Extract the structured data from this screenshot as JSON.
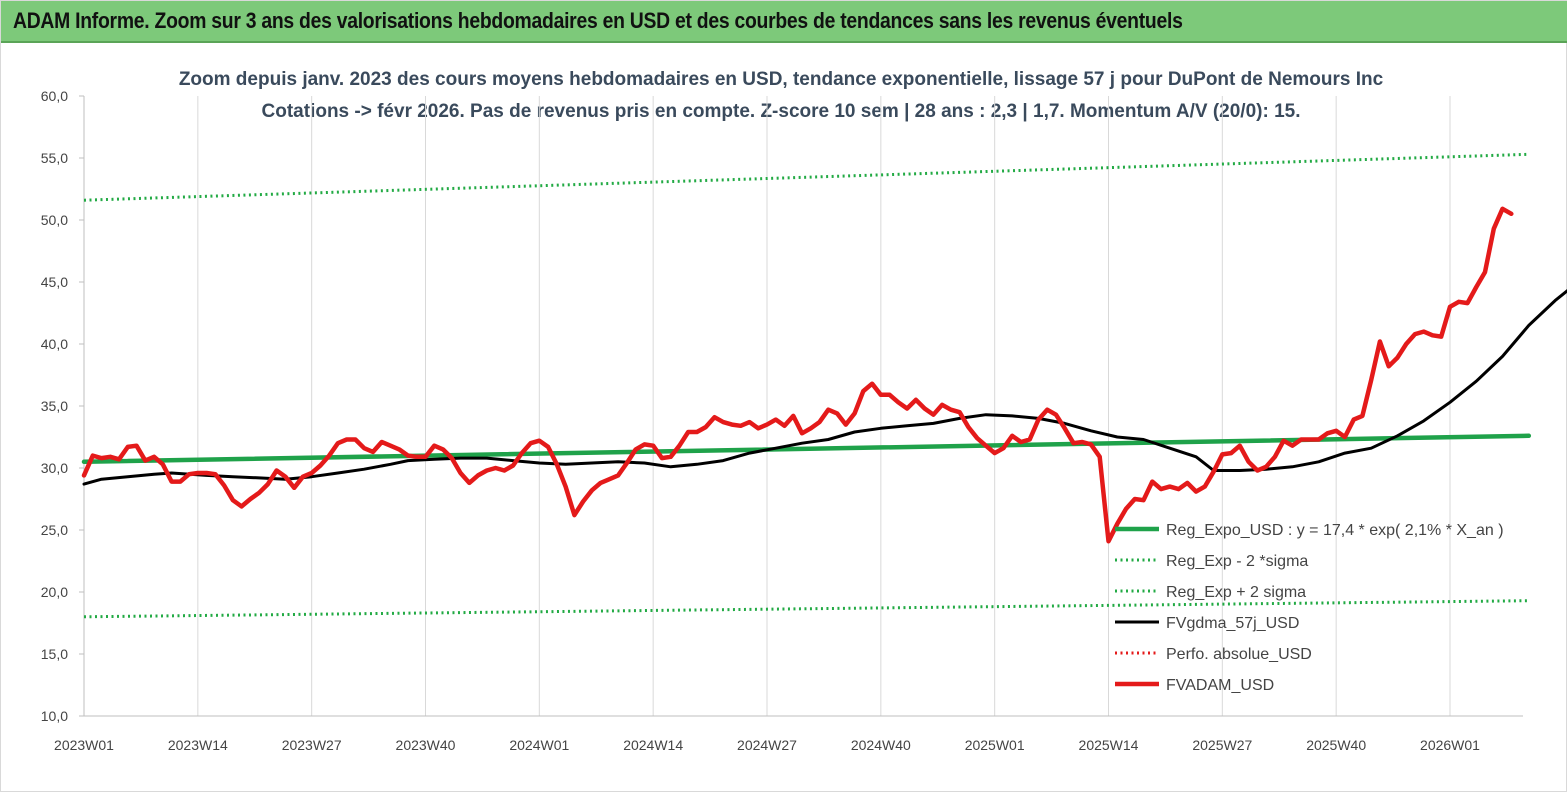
{
  "banner": {
    "title": "ADAM Informe. Zoom sur 3 ans des valorisations hebdomadaires en USD et des courbes de tendances sans les revenus éventuels",
    "color": "#7dc97a"
  },
  "chart_data": {
    "type": "line",
    "title": "Zoom depuis janv. 2023 des cours moyens hebdomadaires en USD, tendance exponentielle, lissage 57 j pour DuPont de Nemours Inc",
    "subtitle": "Cotations -> févr 2026.  Pas de revenus pris en compte. Z-score 10 sem  | 28 ans : 2,3  | 1,7. Momentum A/V (20/0): 15.",
    "xlabel": "",
    "ylabel": "",
    "ylim": [
      10,
      60
    ],
    "yticks": [
      "60,0",
      "55,0",
      "50,0",
      "45,0",
      "40,0",
      "35,0",
      "30,0",
      "25,0",
      "20,0",
      "15,0",
      "10,0"
    ],
    "xticks": [
      "2023W01",
      "2023W14",
      "2023W27",
      "2023W40",
      "2024W01",
      "2024W14",
      "2024W27",
      "2024W40",
      "2025W01",
      "2025W14",
      "2025W27",
      "2025W40",
      "2026W01"
    ],
    "xrange_weeks": [
      0,
      165
    ],
    "grid": "vertical",
    "legend_position": "bottom-right",
    "series": [
      {
        "name": "Reg_Expo_USD : y = 17,4 * exp( 2,1% *  X_an )",
        "color": "#1fa24a",
        "style": "solid-thick",
        "points": [
          [
            0,
            30.5
          ],
          [
            165,
            32.6
          ]
        ]
      },
      {
        "name": "Reg_Exp - 2 *sigma",
        "color": "#22aa44",
        "style": "dotted",
        "points": [
          [
            0,
            18.0
          ],
          [
            165,
            19.3
          ]
        ]
      },
      {
        "name": "Reg_Exp + 2 sigma",
        "color": "#22aa44",
        "style": "dotted",
        "points": [
          [
            0,
            51.6
          ],
          [
            165,
            55.3
          ]
        ]
      },
      {
        "name": "FVgdma_57j_USD",
        "color": "#000000",
        "style": "solid",
        "points": [
          [
            0,
            28.7
          ],
          [
            2,
            29.1
          ],
          [
            5,
            29.3
          ],
          [
            8,
            29.5
          ],
          [
            10,
            29.6
          ],
          [
            14,
            29.4
          ],
          [
            17,
            29.3
          ],
          [
            20,
            29.2
          ],
          [
            23,
            29.1
          ],
          [
            26,
            29.3
          ],
          [
            29,
            29.6
          ],
          [
            32,
            29.9
          ],
          [
            35,
            30.3
          ],
          [
            37,
            30.6
          ],
          [
            40,
            30.7
          ],
          [
            43,
            30.8
          ],
          [
            46,
            30.8
          ],
          [
            49,
            30.6
          ],
          [
            52,
            30.4
          ],
          [
            55,
            30.3
          ],
          [
            58,
            30.4
          ],
          [
            61,
            30.5
          ],
          [
            64,
            30.4
          ],
          [
            67,
            30.1
          ],
          [
            70,
            30.3
          ],
          [
            73,
            30.6
          ],
          [
            76,
            31.2
          ],
          [
            79,
            31.6
          ],
          [
            82,
            32.0
          ],
          [
            85,
            32.3
          ],
          [
            88,
            32.9
          ],
          [
            91,
            33.2
          ],
          [
            94,
            33.4
          ],
          [
            97,
            33.6
          ],
          [
            100,
            34.0
          ],
          [
            103,
            34.3
          ],
          [
            106,
            34.2
          ],
          [
            109,
            34.0
          ],
          [
            112,
            33.6
          ],
          [
            115,
            33.0
          ],
          [
            118,
            32.5
          ],
          [
            121,
            32.3
          ],
          [
            124,
            31.6
          ],
          [
            127,
            30.9
          ],
          [
            129,
            29.8
          ],
          [
            132,
            29.8
          ],
          [
            135,
            29.9
          ],
          [
            138,
            30.1
          ],
          [
            141,
            30.5
          ],
          [
            144,
            31.2
          ],
          [
            147,
            31.6
          ],
          [
            150,
            32.6
          ],
          [
            153,
            33.8
          ],
          [
            156,
            35.3
          ],
          [
            159,
            37.0
          ],
          [
            162,
            39.0
          ],
          [
            165,
            41.5
          ],
          [
            168,
            43.5
          ],
          [
            171,
            45.2
          ],
          [
            174,
            47.0
          ]
        ]
      },
      {
        "name": "Perfo. absolue_USD",
        "color": "#e41a1a",
        "style": "dotted",
        "points": []
      },
      {
        "name": "FVADAM_USD",
        "color": "#e41a1a",
        "style": "solid-thick",
        "points": [
          [
            0,
            29.4
          ],
          [
            1,
            31.0
          ],
          [
            2,
            30.8
          ],
          [
            3,
            30.9
          ],
          [
            4,
            30.7
          ],
          [
            5,
            31.7
          ],
          [
            6,
            31.8
          ],
          [
            7,
            30.6
          ],
          [
            8,
            30.9
          ],
          [
            9,
            30.3
          ],
          [
            10,
            28.9
          ],
          [
            11,
            28.9
          ],
          [
            12,
            29.5
          ],
          [
            13,
            29.6
          ],
          [
            14,
            29.6
          ],
          [
            15,
            29.5
          ],
          [
            16,
            28.6
          ],
          [
            17,
            27.4
          ],
          [
            18,
            26.9
          ],
          [
            19,
            27.5
          ],
          [
            20,
            28.0
          ],
          [
            21,
            28.7
          ],
          [
            22,
            29.8
          ],
          [
            23,
            29.3
          ],
          [
            24,
            28.4
          ],
          [
            25,
            29.3
          ],
          [
            26,
            29.6
          ],
          [
            27,
            30.2
          ],
          [
            28,
            31.0
          ],
          [
            29,
            32.0
          ],
          [
            30,
            32.3
          ],
          [
            31,
            32.3
          ],
          [
            32,
            31.6
          ],
          [
            33,
            31.3
          ],
          [
            34,
            32.1
          ],
          [
            35,
            31.8
          ],
          [
            36,
            31.5
          ],
          [
            37,
            31.0
          ],
          [
            38,
            30.9
          ],
          [
            39,
            30.9
          ],
          [
            40,
            31.8
          ],
          [
            41,
            31.5
          ],
          [
            42,
            30.8
          ],
          [
            43,
            29.6
          ],
          [
            44,
            28.8
          ],
          [
            45,
            29.4
          ],
          [
            46,
            29.8
          ],
          [
            47,
            30.0
          ],
          [
            48,
            29.8
          ],
          [
            49,
            30.2
          ],
          [
            50,
            31.2
          ],
          [
            51,
            32.0
          ],
          [
            52,
            32.2
          ],
          [
            53,
            31.7
          ],
          [
            54,
            30.3
          ],
          [
            55,
            28.5
          ],
          [
            56,
            26.2
          ],
          [
            57,
            27.3
          ],
          [
            58,
            28.2
          ],
          [
            59,
            28.8
          ],
          [
            60,
            29.1
          ],
          [
            61,
            29.4
          ],
          [
            62,
            30.4
          ],
          [
            63,
            31.5
          ],
          [
            64,
            31.9
          ],
          [
            65,
            31.8
          ],
          [
            66,
            30.8
          ],
          [
            67,
            30.9
          ],
          [
            68,
            31.8
          ],
          [
            69,
            32.9
          ],
          [
            70,
            32.9
          ],
          [
            71,
            33.3
          ],
          [
            72,
            34.1
          ],
          [
            73,
            33.7
          ],
          [
            74,
            33.5
          ],
          [
            75,
            33.4
          ],
          [
            76,
            33.7
          ],
          [
            77,
            33.2
          ],
          [
            78,
            33.5
          ],
          [
            79,
            33.9
          ],
          [
            80,
            33.4
          ],
          [
            81,
            34.2
          ],
          [
            82,
            32.8
          ],
          [
            83,
            33.2
          ],
          [
            84,
            33.7
          ],
          [
            85,
            34.7
          ],
          [
            86,
            34.4
          ],
          [
            87,
            33.5
          ],
          [
            88,
            34.4
          ],
          [
            89,
            36.2
          ],
          [
            90,
            36.8
          ],
          [
            91,
            35.9
          ],
          [
            92,
            35.9
          ],
          [
            93,
            35.3
          ],
          [
            94,
            34.8
          ],
          [
            95,
            35.5
          ],
          [
            96,
            34.8
          ],
          [
            97,
            34.3
          ],
          [
            98,
            35.1
          ],
          [
            99,
            34.7
          ],
          [
            100,
            34.5
          ],
          [
            101,
            33.3
          ],
          [
            102,
            32.4
          ],
          [
            103,
            31.8
          ],
          [
            104,
            31.2
          ],
          [
            105,
            31.6
          ],
          [
            106,
            32.6
          ],
          [
            107,
            32.1
          ],
          [
            108,
            32.3
          ],
          [
            109,
            33.9
          ],
          [
            110,
            34.7
          ],
          [
            111,
            34.3
          ],
          [
            112,
            33.2
          ],
          [
            113,
            32.0
          ],
          [
            114,
            32.1
          ],
          [
            115,
            31.9
          ],
          [
            116,
            30.9
          ],
          [
            117,
            24.1
          ],
          [
            118,
            25.5
          ],
          [
            119,
            26.7
          ],
          [
            120,
            27.5
          ],
          [
            121,
            27.4
          ],
          [
            122,
            28.9
          ],
          [
            123,
            28.3
          ],
          [
            124,
            28.5
          ],
          [
            125,
            28.3
          ],
          [
            126,
            28.8
          ],
          [
            127,
            28.1
          ],
          [
            128,
            28.5
          ],
          [
            129,
            29.7
          ],
          [
            130,
            31.1
          ],
          [
            131,
            31.2
          ],
          [
            132,
            31.8
          ],
          [
            133,
            30.5
          ],
          [
            134,
            29.8
          ],
          [
            135,
            30.1
          ],
          [
            136,
            30.9
          ],
          [
            137,
            32.2
          ],
          [
            138,
            31.8
          ],
          [
            139,
            32.3
          ],
          [
            140,
            32.3
          ],
          [
            141,
            32.3
          ],
          [
            142,
            32.8
          ],
          [
            143,
            33.0
          ],
          [
            144,
            32.5
          ],
          [
            145,
            33.9
          ],
          [
            146,
            34.2
          ],
          [
            147,
            37.1
          ],
          [
            148,
            40.2
          ],
          [
            149,
            38.2
          ],
          [
            150,
            38.9
          ],
          [
            151,
            40.0
          ],
          [
            152,
            40.8
          ],
          [
            153,
            41.0
          ],
          [
            154,
            40.7
          ],
          [
            155,
            40.6
          ],
          [
            156,
            43.0
          ],
          [
            157,
            43.4
          ],
          [
            158,
            43.3
          ],
          [
            159,
            44.6
          ],
          [
            160,
            45.8
          ],
          [
            161,
            49.3
          ],
          [
            162,
            50.9
          ],
          [
            163,
            50.5
          ]
        ]
      }
    ]
  }
}
